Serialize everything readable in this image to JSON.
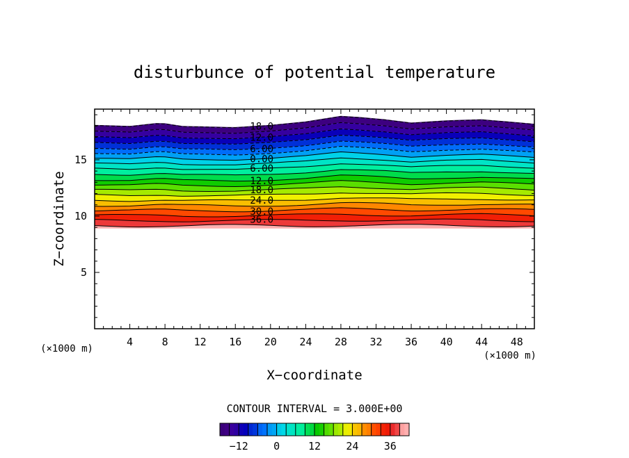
{
  "chart_data": {
    "type": "contour",
    "title": "disturbunce of potential temperature",
    "xlabel": "X−coordinate",
    "ylabel": "Z−coordinate",
    "x_unit_left": "(×1000 m)",
    "x_unit_right": "(×1000 m)",
    "xlim": [
      0,
      50
    ],
    "ylim": [
      0,
      19.5
    ],
    "x_ticks": [
      4,
      8,
      12,
      16,
      20,
      24,
      28,
      32,
      36,
      40,
      44,
      48
    ],
    "x_tick_labels": [
      "4",
      "8",
      "12",
      "16",
      "20",
      "24",
      "28",
      "32",
      "36",
      "40",
      "44",
      "48"
    ],
    "y_ticks": [
      5,
      10,
      15
    ],
    "y_tick_labels": [
      "5",
      "10",
      "15"
    ],
    "contour_interval_text": "CONTOUR INTERVAL = 3.000E+00",
    "contour_interval": 3.0,
    "levels": [
      -18,
      -15,
      -12,
      -9,
      -6,
      -3,
      0,
      3,
      6,
      9,
      12,
      15,
      18,
      21,
      24,
      27,
      30,
      33,
      36,
      39
    ],
    "negative_line_style": "dashed",
    "top_boundary": {
      "x": [
        0,
        4,
        7.5,
        10,
        16,
        20,
        24,
        28,
        30,
        33,
        36,
        40,
        44,
        50
      ],
      "z": [
        18.1,
        18.0,
        18.3,
        18.0,
        17.9,
        18.1,
        18.4,
        18.9,
        18.8,
        18.6,
        18.3,
        18.5,
        18.6,
        18.2
      ]
    },
    "bottom_boundary_z": 8.9,
    "contour_labels": [
      {
        "text": "18.0",
        "value": -18,
        "x": 19,
        "z": 18.0
      },
      {
        "text": "12.0",
        "value": -12,
        "x": 19,
        "z": 17.0
      },
      {
        "text": "6.00",
        "value": -6,
        "x": 19,
        "z": 16.0
      },
      {
        "text": "0.00",
        "value": 0,
        "x": 19,
        "z": 15.1
      },
      {
        "text": "6.00",
        "value": 6,
        "x": 19,
        "z": 14.2
      },
      {
        "text": "12.0",
        "value": 12,
        "x": 19,
        "z": 13.2
      },
      {
        "text": "18.0",
        "value": 18,
        "x": 19,
        "z": 12.3
      },
      {
        "text": "24.0",
        "value": 24,
        "x": 19,
        "z": 11.4
      },
      {
        "text": "30.0",
        "value": 30,
        "x": 19,
        "z": 10.5
      },
      {
        "text": "36.0",
        "value": 36,
        "x": 19,
        "z": 9.6
      }
    ],
    "colorbar": {
      "range": [
        -18,
        42
      ],
      "ticks": [
        -12,
        0,
        12,
        24,
        36
      ],
      "tick_labels": [
        "−12",
        "0",
        "12",
        "24",
        "36"
      ]
    }
  }
}
